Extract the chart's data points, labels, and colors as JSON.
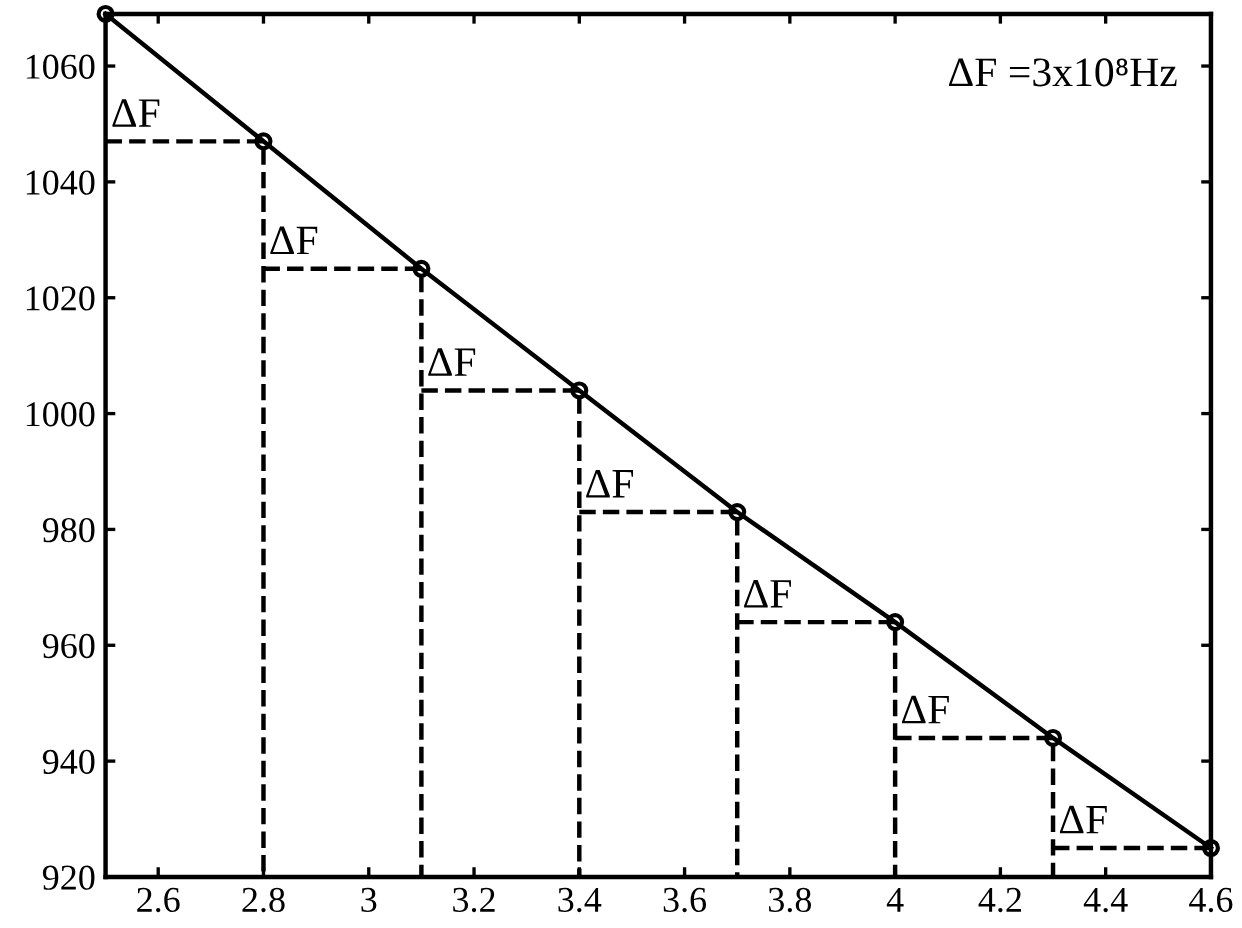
{
  "chart_data": {
    "type": "line",
    "xlim": [
      2.5,
      4.6
    ],
    "ylim": [
      920,
      1069
    ],
    "xticks": [
      2.6,
      2.8,
      3,
      3.2,
      3.4,
      3.6,
      3.8,
      4,
      4.2,
      4.4,
      4.6
    ],
    "yticks": [
      920,
      940,
      960,
      980,
      1000,
      1020,
      1040,
      1060
    ],
    "grid": false,
    "legend": false,
    "annotations": [
      "ΔF =3x10⁸Hz",
      {
        "text": "ΔF",
        "x": 2.5,
        "y": 1047
      },
      {
        "text": "ΔF",
        "x": 2.8,
        "y": 1025
      },
      {
        "text": "ΔF",
        "x": 3.1,
        "y": 1004
      },
      {
        "text": "ΔF",
        "x": 3.4,
        "y": 983
      },
      {
        "text": "ΔF",
        "x": 3.7,
        "y": 964
      },
      {
        "text": "ΔF",
        "x": 4.0,
        "y": 944
      },
      {
        "text": "ΔF",
        "x": 4.3,
        "y": 925
      }
    ],
    "series": [
      {
        "color": "#000000",
        "marker": "circle",
        "line_style": "solid",
        "x": [
          2.5,
          2.8,
          3.1,
          3.4,
          3.7,
          4.0,
          4.3,
          4.6
        ],
        "values": [
          1069,
          1047,
          1025,
          1004,
          983,
          964,
          944,
          925
        ]
      },
      {
        "color": "#000000",
        "marker": "none",
        "line_style": "dashed",
        "x": [
          2.5,
          2.8,
          2.8
        ],
        "values": [
          1047,
          1047,
          920
        ]
      },
      {
        "color": "#000000",
        "marker": "none",
        "line_style": "dashed",
        "x": [
          2.8,
          3.1,
          3.1
        ],
        "values": [
          1025,
          1025,
          920
        ]
      },
      {
        "color": "#000000",
        "marker": "none",
        "line_style": "dashed",
        "x": [
          3.1,
          3.4,
          3.4
        ],
        "values": [
          1004,
          1004,
          920
        ]
      },
      {
        "color": "#000000",
        "marker": "none",
        "line_style": "dashed",
        "x": [
          3.4,
          3.7,
          3.7
        ],
        "values": [
          983,
          983,
          920
        ]
      },
      {
        "color": "#000000",
        "marker": "none",
        "line_style": "dashed",
        "x": [
          3.7,
          4.0,
          4.0
        ],
        "values": [
          964,
          964,
          920
        ]
      },
      {
        "color": "#000000",
        "marker": "none",
        "line_style": "dashed",
        "x": [
          4.0,
          4.3,
          4.3
        ],
        "values": [
          944,
          944,
          920
        ]
      },
      {
        "color": "#000000",
        "marker": "none",
        "line_style": "dashed",
        "x": [
          4.3,
          4.6
        ],
        "values": [
          925,
          925
        ]
      }
    ]
  }
}
